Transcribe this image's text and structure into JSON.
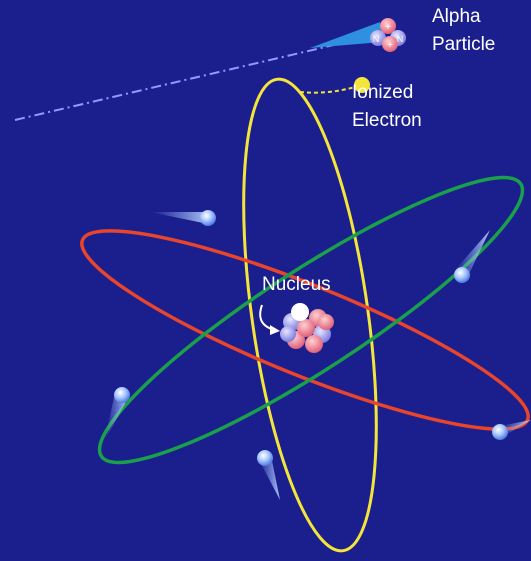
{
  "labels": {
    "alpha_particle": [
      "Alpha",
      "Particle"
    ],
    "ionized_electron": [
      "Ionized",
      "Electron"
    ],
    "nucleus": "Nucleus",
    "alpha_symbols": [
      "+",
      "N",
      "N",
      "+"
    ]
  }
}
